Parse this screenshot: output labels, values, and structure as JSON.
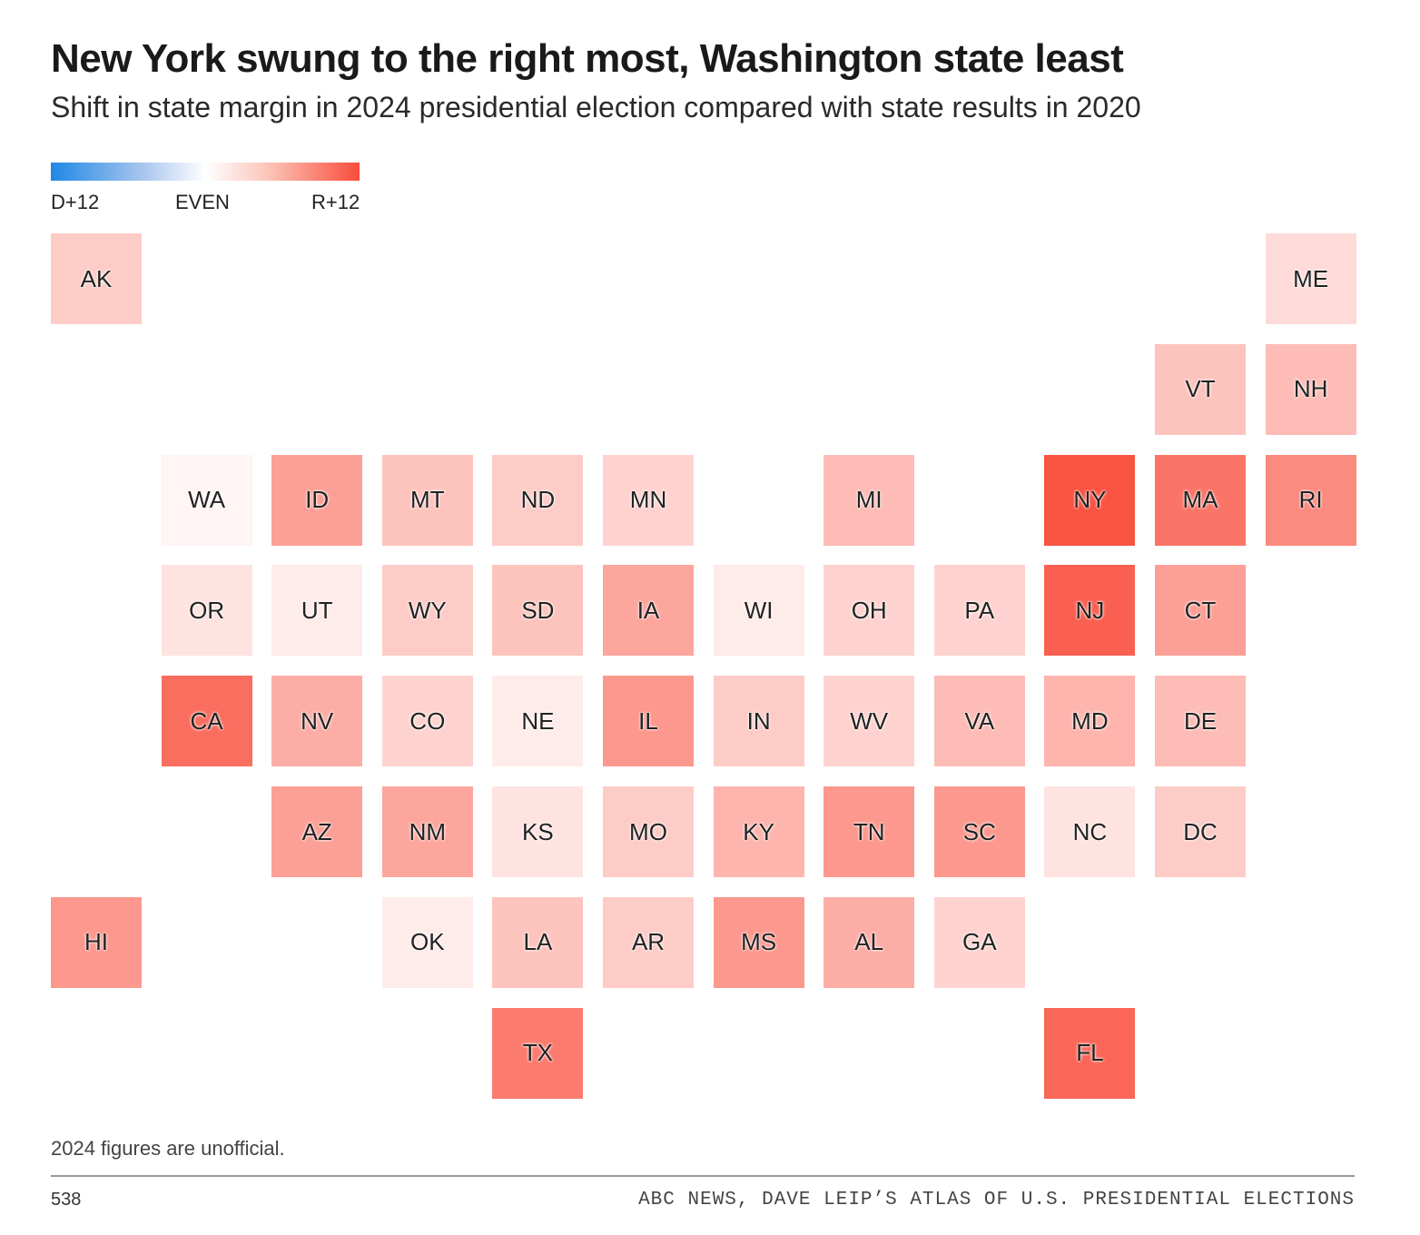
{
  "header": {
    "title": "New York swung to the right most, Washington state least",
    "subtitle": "Shift in state margin in 2024 presidential election compared with state results in 2020"
  },
  "legend": {
    "left": "D+12",
    "center": "EVEN",
    "right": "R+12",
    "colors": {
      "d": "#1e88e5",
      "even": "#ffffff",
      "r": "#f94c3b"
    }
  },
  "chart_data": {
    "type": "heatmap",
    "title": "New York swung to the right most, Washington state least",
    "subtitle": "Shift in state margin in 2024 presidential election compared with state results in 2020",
    "scale": {
      "min": -12,
      "max": 12,
      "unit": "percentage-point shift toward R"
    },
    "states": [
      {
        "abbr": "AK",
        "row": 0,
        "col": 0,
        "shift": 3
      },
      {
        "abbr": "ME",
        "row": 0,
        "col": 11,
        "shift": 2
      },
      {
        "abbr": "VT",
        "row": 1,
        "col": 10,
        "shift": 3.5
      },
      {
        "abbr": "NH",
        "row": 1,
        "col": 11,
        "shift": 4
      },
      {
        "abbr": "WA",
        "row": 2,
        "col": 1,
        "shift": 0.5
      },
      {
        "abbr": "ID",
        "row": 2,
        "col": 2,
        "shift": 6
      },
      {
        "abbr": "MT",
        "row": 2,
        "col": 3,
        "shift": 3.5
      },
      {
        "abbr": "ND",
        "row": 2,
        "col": 4,
        "shift": 3
      },
      {
        "abbr": "MN",
        "row": 2,
        "col": 5,
        "shift": 2.5
      },
      {
        "abbr": "MI",
        "row": 2,
        "col": 7,
        "shift": 4
      },
      {
        "abbr": "NY",
        "row": 2,
        "col": 9,
        "shift": 11.5
      },
      {
        "abbr": "MA",
        "row": 2,
        "col": 10,
        "shift": 9
      },
      {
        "abbr": "RI",
        "row": 2,
        "col": 11,
        "shift": 7.5
      },
      {
        "abbr": "OR",
        "row": 3,
        "col": 1,
        "shift": 1.5
      },
      {
        "abbr": "UT",
        "row": 3,
        "col": 2,
        "shift": 1
      },
      {
        "abbr": "WY",
        "row": 3,
        "col": 3,
        "shift": 3
      },
      {
        "abbr": "SD",
        "row": 3,
        "col": 4,
        "shift": 3.5
      },
      {
        "abbr": "IA",
        "row": 3,
        "col": 5,
        "shift": 5.5
      },
      {
        "abbr": "WI",
        "row": 3,
        "col": 6,
        "shift": 1
      },
      {
        "abbr": "OH",
        "row": 3,
        "col": 7,
        "shift": 2.5
      },
      {
        "abbr": "PA",
        "row": 3,
        "col": 8,
        "shift": 2.5
      },
      {
        "abbr": "NJ",
        "row": 3,
        "col": 9,
        "shift": 10.5
      },
      {
        "abbr": "CT",
        "row": 3,
        "col": 10,
        "shift": 6
      },
      {
        "abbr": "CA",
        "row": 4,
        "col": 1,
        "shift": 9.5
      },
      {
        "abbr": "NV",
        "row": 4,
        "col": 2,
        "shift": 5
      },
      {
        "abbr": "CO",
        "row": 4,
        "col": 3,
        "shift": 2.5
      },
      {
        "abbr": "NE",
        "row": 4,
        "col": 4,
        "shift": 1
      },
      {
        "abbr": "IL",
        "row": 4,
        "col": 5,
        "shift": 6.5
      },
      {
        "abbr": "IN",
        "row": 4,
        "col": 6,
        "shift": 3
      },
      {
        "abbr": "WV",
        "row": 4,
        "col": 7,
        "shift": 2.5
      },
      {
        "abbr": "VA",
        "row": 4,
        "col": 8,
        "shift": 4
      },
      {
        "abbr": "MD",
        "row": 4,
        "col": 9,
        "shift": 4.5
      },
      {
        "abbr": "DE",
        "row": 4,
        "col": 10,
        "shift": 4
      },
      {
        "abbr": "AZ",
        "row": 5,
        "col": 2,
        "shift": 6
      },
      {
        "abbr": "NM",
        "row": 5,
        "col": 3,
        "shift": 5.5
      },
      {
        "abbr": "KS",
        "row": 5,
        "col": 4,
        "shift": 1.5
      },
      {
        "abbr": "MO",
        "row": 5,
        "col": 5,
        "shift": 3
      },
      {
        "abbr": "KY",
        "row": 5,
        "col": 6,
        "shift": 4.5
      },
      {
        "abbr": "TN",
        "row": 5,
        "col": 7,
        "shift": 6.5
      },
      {
        "abbr": "SC",
        "row": 5,
        "col": 8,
        "shift": 6.5
      },
      {
        "abbr": "NC",
        "row": 5,
        "col": 9,
        "shift": 1.5
      },
      {
        "abbr": "DC",
        "row": 5,
        "col": 10,
        "shift": 3
      },
      {
        "abbr": "HI",
        "row": 6,
        "col": 0,
        "shift": 6.5
      },
      {
        "abbr": "OK",
        "row": 6,
        "col": 3,
        "shift": 1
      },
      {
        "abbr": "LA",
        "row": 6,
        "col": 4,
        "shift": 3.5
      },
      {
        "abbr": "AR",
        "row": 6,
        "col": 5,
        "shift": 3
      },
      {
        "abbr": "MS",
        "row": 6,
        "col": 6,
        "shift": 6.5
      },
      {
        "abbr": "AL",
        "row": 6,
        "col": 7,
        "shift": 5
      },
      {
        "abbr": "GA",
        "row": 6,
        "col": 8,
        "shift": 2.5
      },
      {
        "abbr": "TX",
        "row": 7,
        "col": 4,
        "shift": 8.5
      },
      {
        "abbr": "FL",
        "row": 7,
        "col": 9,
        "shift": 10
      }
    ]
  },
  "footer": {
    "note": "2024 figures are unofficial.",
    "brand": "538",
    "source": "ABC NEWS, DAVE LEIP’S ATLAS OF U.S. PRESIDENTIAL ELECTIONS"
  }
}
